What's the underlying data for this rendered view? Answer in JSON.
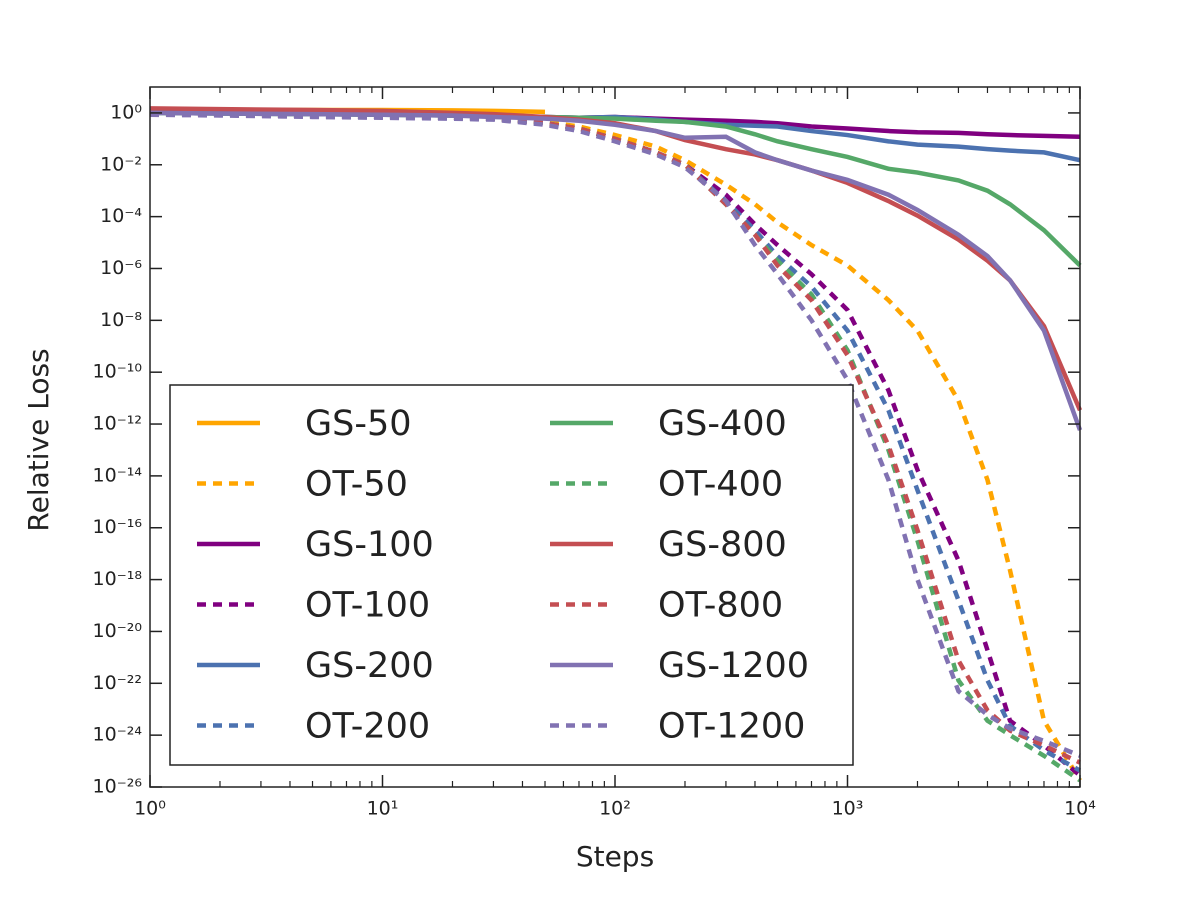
{
  "chart_data": {
    "type": "line",
    "xlabel": "Steps",
    "ylabel": "Relative Loss",
    "xscale": "log",
    "yscale": "log",
    "xlim": [
      1,
      10000
    ],
    "ylim": [
      1e-26,
      10
    ],
    "xticks": [
      {
        "value": 1,
        "label": "10⁰"
      },
      {
        "value": 10,
        "label": "10¹"
      },
      {
        "value": 100,
        "label": "10²"
      },
      {
        "value": 1000,
        "label": "10³"
      },
      {
        "value": 10000,
        "label": "10⁴"
      }
    ],
    "yticks": [
      {
        "value": 1,
        "label": "10⁰"
      },
      {
        "value": 0.01,
        "label": "10⁻²"
      },
      {
        "value": 0.0001,
        "label": "10⁻⁴"
      },
      {
        "value": 1e-06,
        "label": "10⁻⁶"
      },
      {
        "value": 1e-08,
        "label": "10⁻⁸"
      },
      {
        "value": 1e-10,
        "label": "10⁻¹⁰"
      },
      {
        "value": 1e-12,
        "label": "10⁻¹²"
      },
      {
        "value": 1e-14,
        "label": "10⁻¹⁴"
      },
      {
        "value": 1e-16,
        "label": "10⁻¹⁶"
      },
      {
        "value": 1e-18,
        "label": "10⁻¹⁸"
      },
      {
        "value": 1e-20,
        "label": "10⁻²⁰"
      },
      {
        "value": 1e-22,
        "label": "10⁻²²"
      },
      {
        "value": 1e-24,
        "label": "10⁻²⁴"
      },
      {
        "value": 1e-26,
        "label": "10⁻²⁶"
      }
    ],
    "legend": {
      "loc": "lower left",
      "columns": 2
    },
    "x": [
      1,
      2,
      5,
      10,
      20,
      30,
      50,
      70,
      100,
      150,
      200,
      300,
      400,
      500,
      700,
      1000,
      1500,
      2000,
      3000,
      4000,
      5000,
      7000,
      10000
    ],
    "series": [
      {
        "name": "GS-50",
        "color": "#ffa500",
        "linestyle": "solid",
        "values": [
          1.3,
          1.3,
          1.3,
          1.3,
          1.25,
          1.2,
          1.1,
          null,
          null,
          null,
          null,
          null,
          null,
          null,
          null,
          null,
          null,
          null,
          null,
          null,
          null,
          null,
          null
        ]
      },
      {
        "name": "OT-50",
        "color": "#ffa500",
        "linestyle": "dashed",
        "values": [
          0.9,
          0.85,
          0.75,
          0.7,
          0.65,
          0.6,
          0.45,
          0.3,
          0.14,
          0.05,
          0.015,
          0.0017,
          0.0003,
          6e-05,
          8e-06,
          1.3e-06,
          6e-08,
          4e-09,
          8e-12,
          7e-15,
          2.3e-18,
          3.6e-24,
          1.8e-26
        ]
      },
      {
        "name": "GS-100",
        "color": "#800080",
        "linestyle": "solid",
        "values": [
          1.2,
          1.1,
          1.0,
          0.9,
          0.8,
          0.75,
          0.7,
          0.65,
          0.7,
          0.6,
          0.55,
          0.5,
          0.45,
          0.4,
          0.3,
          0.25,
          0.2,
          0.18,
          0.17,
          0.15,
          0.14,
          0.13,
          0.12
        ]
      },
      {
        "name": "OT-100",
        "color": "#800080",
        "linestyle": "dashed",
        "values": [
          0.9,
          0.85,
          0.75,
          0.7,
          0.65,
          0.6,
          0.4,
          0.25,
          0.1,
          0.03,
          0.01,
          0.0007,
          5e-05,
          8e-06,
          6e-07,
          2.5e-08,
          2e-11,
          1.7e-14,
          5.5e-18,
          1.9e-21,
          3.6e-24,
          4e-25,
          2.8e-26
        ]
      },
      {
        "name": "GS-200",
        "color": "#4c72b0",
        "linestyle": "solid",
        "values": [
          1.0,
          0.95,
          0.9,
          0.85,
          0.8,
          0.75,
          0.7,
          0.65,
          0.7,
          0.55,
          0.45,
          0.35,
          0.32,
          0.3,
          0.2,
          0.14,
          0.08,
          0.06,
          0.05,
          0.04,
          0.035,
          0.03,
          0.015
        ]
      },
      {
        "name": "OT-200",
        "color": "#4c72b0",
        "linestyle": "dashed",
        "values": [
          0.9,
          0.85,
          0.75,
          0.7,
          0.65,
          0.6,
          0.4,
          0.25,
          0.1,
          0.03,
          0.01,
          0.0004,
          3e-05,
          3e-06,
          2e-07,
          4e-09,
          3.4e-12,
          2.8e-15,
          1.6e-19,
          1.3e-22,
          2.3e-24,
          2.6e-25,
          4.3e-26
        ]
      },
      {
        "name": "GS-400",
        "color": "#55a868",
        "linestyle": "solid",
        "values": [
          1.0,
          0.95,
          0.9,
          0.85,
          0.8,
          0.75,
          0.7,
          0.65,
          0.6,
          0.5,
          0.45,
          0.3,
          0.15,
          0.08,
          0.04,
          0.02,
          0.007,
          0.005,
          0.0025,
          0.001,
          0.0003,
          3e-05,
          1.3e-06
        ]
      },
      {
        "name": "OT-400",
        "color": "#55a868",
        "linestyle": "dashed",
        "values": [
          0.9,
          0.85,
          0.75,
          0.7,
          0.65,
          0.6,
          0.4,
          0.25,
          0.1,
          0.03,
          0.01,
          0.0003,
          2e-05,
          2e-06,
          1e-07,
          7e-10,
          1e-13,
          3.2e-17,
          1.3e-22,
          3.6e-24,
          1e-24,
          1.6e-25,
          1.8e-26
        ]
      },
      {
        "name": "GS-800",
        "color": "#c44e52",
        "linestyle": "solid",
        "values": [
          1.5,
          1.4,
          1.3,
          1.2,
          1.0,
          0.9,
          0.7,
          0.55,
          0.4,
          0.2,
          0.09,
          0.04,
          0.025,
          0.015,
          0.006,
          0.002,
          0.0004,
          0.00011,
          1.3e-05,
          2e-06,
          3.5e-07,
          6e-09,
          3.4e-12
        ]
      },
      {
        "name": "OT-800",
        "color": "#c44e52",
        "linestyle": "dashed",
        "values": [
          0.9,
          0.85,
          0.75,
          0.7,
          0.65,
          0.6,
          0.4,
          0.25,
          0.1,
          0.03,
          0.01,
          0.0003,
          2e-05,
          1.3e-06,
          6e-08,
          4.5e-10,
          1.5e-13,
          8e-17,
          7.6e-22,
          9e-24,
          1.5e-24,
          4e-25,
          8.7e-26
        ]
      },
      {
        "name": "GS-1200",
        "color": "#8172b2",
        "linestyle": "solid",
        "values": [
          1.0,
          0.95,
          0.9,
          0.85,
          0.8,
          0.7,
          0.6,
          0.5,
          0.35,
          0.2,
          0.11,
          0.12,
          0.03,
          0.015,
          0.006,
          0.0026,
          0.0007,
          0.00018,
          2e-05,
          3e-06,
          3.5e-07,
          4e-09,
          5.8e-13
        ]
      },
      {
        "name": "OT-1200",
        "color": "#8172b2",
        "linestyle": "dashed",
        "values": [
          0.85,
          0.8,
          0.7,
          0.65,
          0.6,
          0.55,
          0.35,
          0.2,
          0.08,
          0.025,
          0.008,
          0.0004,
          8e-06,
          6e-07,
          1e-08,
          5e-11,
          7e-15,
          1e-18,
          5e-23,
          6e-24,
          1.8e-24,
          6e-25,
          1.6e-25
        ]
      }
    ]
  }
}
